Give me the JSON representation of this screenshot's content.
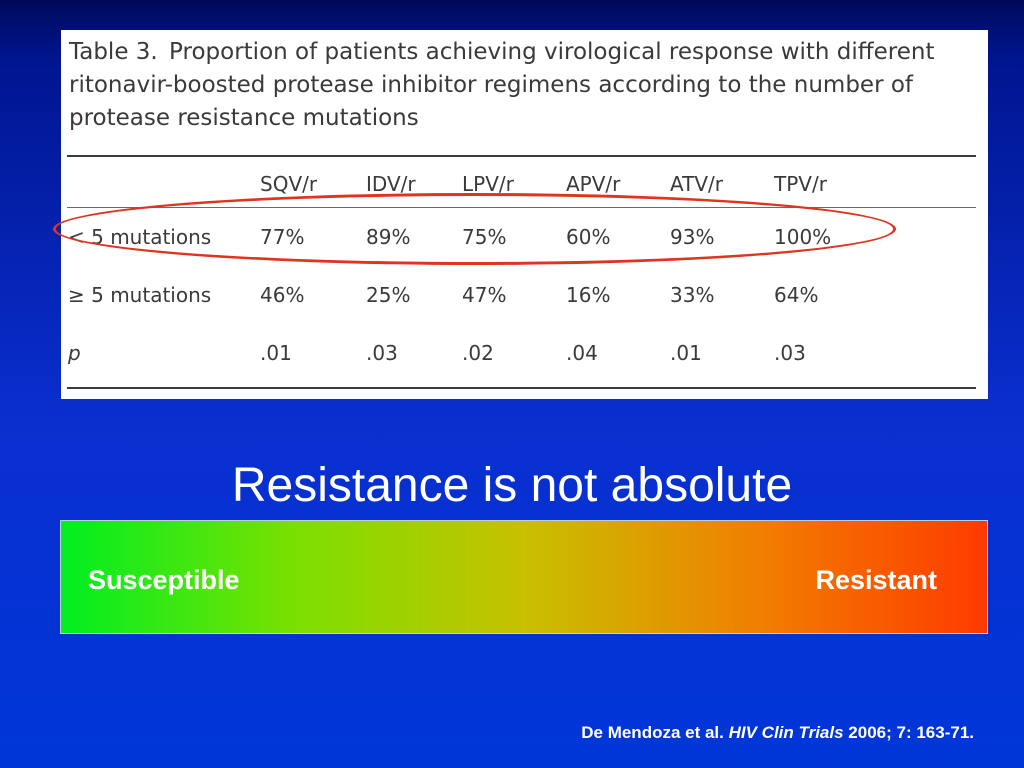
{
  "table": {
    "caption_label": "Table 3.",
    "caption_text": "Proportion of patients achieving virological response with different ritonavir-boosted protease inhibitor regimens according to the number of protease resistance mutations",
    "columns": [
      "SQV/r",
      "IDV/r",
      "LPV/r",
      "APV/r",
      "ATV/r",
      "TPV/r"
    ],
    "rows": [
      {
        "label": "< 5 mutations",
        "values": [
          "77%",
          "89%",
          "75%",
          "60%",
          "93%",
          "100%"
        ]
      },
      {
        "label": "≥ 5 mutations",
        "values": [
          "46%",
          "25%",
          "47%",
          "16%",
          "33%",
          "64%"
        ]
      },
      {
        "label": "p",
        "values": [
          ".01",
          ".03",
          ".02",
          ".04",
          ".01",
          ".03"
        ]
      }
    ]
  },
  "headline": "Resistance is not absolute",
  "scale": {
    "left_label": "Susceptible",
    "right_label": "Resistant"
  },
  "citation": {
    "authors": "De Mendoza et al.",
    "journal": "HIV Clin Trials",
    "details": "2006; 7: 163-71."
  }
}
